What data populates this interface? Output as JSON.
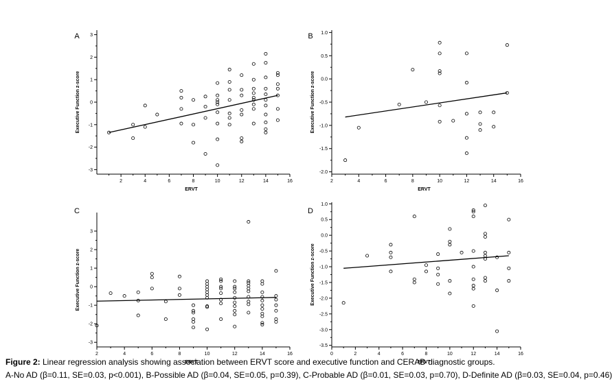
{
  "caption": {
    "figure_label": "Figure 2:",
    "line1": " Linear regression analysis showing association between ERVT score and executive function and CERAD diagnostic groups.",
    "line2": "A-No AD (β=0.11, SE=0.03, p<0.001), B-Possible AD (β=0.04, SE=0.05, p=0.39), C-Probable AD (β=0.01, SE=0.03, p=0.70), D-Definite AD (β=0.03, SE=0.04, p=0.46)"
  },
  "chart_data": [
    {
      "panel": "A",
      "type": "scatter",
      "xlabel": "ERVT",
      "ylabel": "Executive Function z-score",
      "xlim": [
        0,
        16
      ],
      "ylim": [
        -3.2,
        3.2
      ],
      "xticks": [
        2,
        4,
        6,
        8,
        10,
        12,
        14,
        16
      ],
      "yticks": [
        -3,
        -2,
        -1,
        0,
        1,
        2,
        3
      ],
      "grid": false,
      "regression_line": {
        "x": [
          1,
          15
        ],
        "y": [
          -1.35,
          0.3
        ]
      },
      "points": [
        [
          1,
          -1.35
        ],
        [
          3,
          -1.0
        ],
        [
          3,
          -1.6
        ],
        [
          4,
          -0.15
        ],
        [
          4,
          -1.1
        ],
        [
          5,
          -0.55
        ],
        [
          7,
          0.5
        ],
        [
          7,
          0.2
        ],
        [
          7,
          -0.3
        ],
        [
          7,
          -0.95
        ],
        [
          8,
          0.1
        ],
        [
          8,
          -1.0
        ],
        [
          8,
          -1.8
        ],
        [
          9,
          0.25
        ],
        [
          9,
          -0.2
        ],
        [
          9,
          -0.7
        ],
        [
          9,
          -2.3
        ],
        [
          10,
          0.85
        ],
        [
          10,
          0.3
        ],
        [
          10,
          0.1
        ],
        [
          10,
          0.0
        ],
        [
          10,
          -0.1
        ],
        [
          10,
          -0.45
        ],
        [
          10,
          -0.95
        ],
        [
          10,
          -1.65
        ],
        [
          10,
          -2.8
        ],
        [
          11,
          1.45
        ],
        [
          11,
          0.9
        ],
        [
          11,
          0.55
        ],
        [
          11,
          0.1
        ],
        [
          11,
          -0.5
        ],
        [
          11,
          -0.7
        ],
        [
          11,
          -1.0
        ],
        [
          12,
          1.2
        ],
        [
          12,
          0.55
        ],
        [
          12,
          0.3
        ],
        [
          12,
          -0.35
        ],
        [
          12,
          -0.55
        ],
        [
          12,
          -1.6
        ],
        [
          12,
          -1.75
        ],
        [
          13,
          1.7
        ],
        [
          13,
          1.0
        ],
        [
          13,
          0.6
        ],
        [
          13,
          0.4
        ],
        [
          13,
          0.2
        ],
        [
          13,
          0.1
        ],
        [
          13,
          -0.1
        ],
        [
          13,
          -0.3
        ],
        [
          13,
          -0.95
        ],
        [
          14,
          2.15
        ],
        [
          14,
          1.75
        ],
        [
          14,
          1.1
        ],
        [
          14,
          0.6
        ],
        [
          14,
          0.35
        ],
        [
          14,
          0.1
        ],
        [
          14,
          -0.15
        ],
        [
          14,
          -0.55
        ],
        [
          14,
          -0.9
        ],
        [
          14,
          -1.2
        ],
        [
          14,
          -1.35
        ],
        [
          15,
          1.3
        ],
        [
          15,
          1.2
        ],
        [
          15,
          0.8
        ],
        [
          15,
          0.6
        ],
        [
          15,
          0.3
        ],
        [
          15,
          -0.3
        ],
        [
          15,
          -0.8
        ]
      ]
    },
    {
      "panel": "B",
      "type": "scatter",
      "xlabel": "ERVT",
      "ylabel": "Executive Function z-score",
      "xlim": [
        2,
        16
      ],
      "ylim": [
        -2.05,
        1.05
      ],
      "xticks": [
        2,
        4,
        6,
        8,
        10,
        12,
        14,
        16
      ],
      "yticks": [
        -2.0,
        -1.5,
        -1.0,
        -0.5,
        0.0,
        0.5,
        1.0
      ],
      "grid": false,
      "regression_line": {
        "x": [
          3,
          15
        ],
        "y": [
          -0.82,
          -0.3
        ]
      },
      "points": [
        [
          3,
          -1.75
        ],
        [
          4,
          -1.05
        ],
        [
          7,
          -0.55
        ],
        [
          8,
          0.2
        ],
        [
          9,
          -0.5
        ],
        [
          10,
          0.78
        ],
        [
          10,
          0.55
        ],
        [
          10,
          0.17
        ],
        [
          10,
          0.12
        ],
        [
          10,
          -0.57
        ],
        [
          10,
          -0.92
        ],
        [
          11,
          -0.9
        ],
        [
          12,
          0.55
        ],
        [
          12,
          -0.08
        ],
        [
          12,
          -0.75
        ],
        [
          12,
          -1.27
        ],
        [
          12,
          -1.6
        ],
        [
          13,
          -0.72
        ],
        [
          13,
          -0.97
        ],
        [
          13,
          -1.1
        ],
        [
          14,
          -0.72
        ],
        [
          14,
          -1.03
        ],
        [
          15,
          0.73
        ],
        [
          15,
          -0.3
        ]
      ]
    },
    {
      "panel": "C",
      "type": "scatter",
      "xlabel": "ERVT",
      "ylabel": "Executive Function z-score",
      "xlim": [
        2,
        16
      ],
      "ylim": [
        -3.25,
        4.0
      ],
      "xticks": [
        2,
        4,
        6,
        8,
        10,
        12,
        14,
        16
      ],
      "yticks": [
        -3,
        -2,
        -1,
        0,
        1,
        2,
        3
      ],
      "grid": false,
      "regression_line": {
        "x": [
          2,
          15
        ],
        "y": [
          -0.78,
          -0.58
        ]
      },
      "points": [
        [
          2,
          -2.1
        ],
        [
          3,
          -0.35
        ],
        [
          4,
          -0.5
        ],
        [
          5,
          -0.3
        ],
        [
          5,
          -0.75
        ],
        [
          5,
          -1.55
        ],
        [
          6,
          0.7
        ],
        [
          6,
          0.5
        ],
        [
          6,
          -0.1
        ],
        [
          7,
          -0.8
        ],
        [
          7,
          -1.75
        ],
        [
          8,
          0.55
        ],
        [
          8,
          -0.1
        ],
        [
          8,
          -0.45
        ],
        [
          9,
          -1.0
        ],
        [
          9,
          -1.3
        ],
        [
          9,
          -1.4
        ],
        [
          9,
          -1.75
        ],
        [
          9,
          -1.9
        ],
        [
          9,
          -2.2
        ],
        [
          10,
          0.3
        ],
        [
          10,
          0.15
        ],
        [
          10,
          0.0
        ],
        [
          10,
          -0.15
        ],
        [
          10,
          -0.3
        ],
        [
          10,
          -0.45
        ],
        [
          10,
          -0.6
        ],
        [
          10,
          -1.05
        ],
        [
          10,
          -1.1
        ],
        [
          10,
          -2.3
        ],
        [
          11,
          0.4
        ],
        [
          11,
          0.3
        ],
        [
          11,
          0.0
        ],
        [
          11,
          -0.1
        ],
        [
          11,
          -0.35
        ],
        [
          11,
          -0.7
        ],
        [
          11,
          -0.9
        ],
        [
          11,
          -1.75
        ],
        [
          12,
          0.3
        ],
        [
          12,
          0.0
        ],
        [
          12,
          -0.1
        ],
        [
          12,
          -0.3
        ],
        [
          12,
          -0.6
        ],
        [
          12,
          -0.85
        ],
        [
          12,
          -1.05
        ],
        [
          12,
          -1.3
        ],
        [
          12,
          -1.5
        ],
        [
          12,
          -2.15
        ],
        [
          13,
          3.5
        ],
        [
          13,
          0.3
        ],
        [
          13,
          0.2
        ],
        [
          13,
          0.05
        ],
        [
          13,
          -0.1
        ],
        [
          13,
          -0.25
        ],
        [
          13,
          -0.55
        ],
        [
          13,
          -0.8
        ],
        [
          13,
          -0.95
        ],
        [
          13,
          -1.4
        ],
        [
          14,
          0.3
        ],
        [
          14,
          0.15
        ],
        [
          14,
          -0.3
        ],
        [
          14,
          -0.55
        ],
        [
          14,
          -0.75
        ],
        [
          14,
          -1.0
        ],
        [
          14,
          -1.2
        ],
        [
          14,
          -1.45
        ],
        [
          14,
          -1.6
        ],
        [
          14,
          -1.95
        ],
        [
          14,
          -2.05
        ],
        [
          15,
          0.85
        ],
        [
          15,
          -0.5
        ],
        [
          15,
          -0.7
        ],
        [
          15,
          -1.0
        ],
        [
          15,
          -1.3
        ],
        [
          15,
          -1.75
        ],
        [
          15,
          -1.9
        ]
      ]
    },
    {
      "panel": "D",
      "type": "scatter",
      "xlabel": "ERVT",
      "ylabel": "Executive Function z-score",
      "xlim": [
        0,
        16
      ],
      "ylim": [
        -3.55,
        1.05
      ],
      "xticks": [
        0,
        2,
        4,
        6,
        8,
        10,
        12,
        14,
        16
      ],
      "yticks": [
        -3.5,
        -3.0,
        -2.5,
        -2.0,
        -1.5,
        -1.0,
        -0.5,
        0.0,
        0.5,
        1.0
      ],
      "grid": false,
      "regression_line": {
        "x": [
          1,
          15
        ],
        "y": [
          -1.05,
          -0.65
        ]
      },
      "points": [
        [
          1,
          -2.15
        ],
        [
          3,
          -0.65
        ],
        [
          5,
          -0.3
        ],
        [
          5,
          -0.55
        ],
        [
          5,
          -0.7
        ],
        [
          5,
          -1.15
        ],
        [
          7,
          0.6
        ],
        [
          7,
          -1.4
        ],
        [
          7,
          -1.5
        ],
        [
          8,
          -0.95
        ],
        [
          8,
          -1.15
        ],
        [
          9,
          -0.6
        ],
        [
          9,
          -1.05
        ],
        [
          9,
          -1.25
        ],
        [
          9,
          -1.55
        ],
        [
          10,
          0.2
        ],
        [
          10,
          -0.2
        ],
        [
          10,
          -0.3
        ],
        [
          10,
          -1.45
        ],
        [
          10,
          -1.85
        ],
        [
          11,
          -0.55
        ],
        [
          12,
          0.8
        ],
        [
          12,
          0.75
        ],
        [
          12,
          0.6
        ],
        [
          12,
          -0.5
        ],
        [
          12,
          -1.0
        ],
        [
          12,
          -1.4
        ],
        [
          12,
          -1.6
        ],
        [
          12,
          -1.7
        ],
        [
          12,
          -2.25
        ],
        [
          13,
          0.95
        ],
        [
          13,
          0.05
        ],
        [
          13,
          -0.05
        ],
        [
          13,
          -0.55
        ],
        [
          13,
          -0.65
        ],
        [
          13,
          -0.75
        ],
        [
          13,
          -1.35
        ],
        [
          13,
          -1.45
        ],
        [
          14,
          -0.7
        ],
        [
          14,
          -1.75
        ],
        [
          14,
          -3.05
        ],
        [
          15,
          0.5
        ],
        [
          15,
          -0.55
        ],
        [
          15,
          -1.05
        ],
        [
          15,
          -1.45
        ]
      ]
    }
  ]
}
